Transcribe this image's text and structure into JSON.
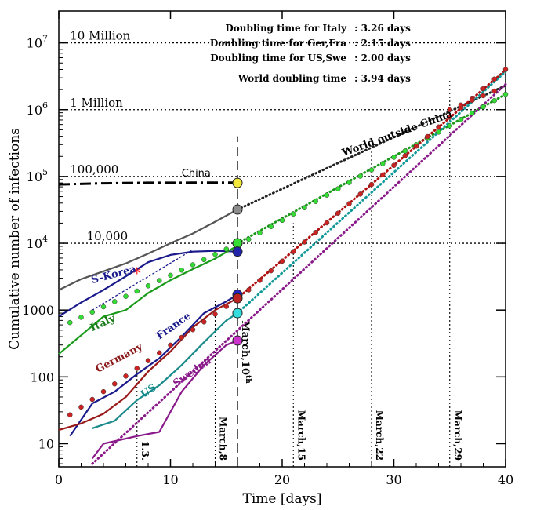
{
  "chart_data": {
    "type": "line",
    "yscale": "log",
    "xlabel": "Time [days]",
    "ylabel": "Cumulative number of infections",
    "xlim": [
      0,
      40
    ],
    "ylim": [
      4.5,
      30000000
    ],
    "xticks": [
      "0",
      "10",
      "20",
      "30",
      "40"
    ],
    "yticks": [
      {
        "value": 10,
        "label": "10"
      },
      {
        "value": 100,
        "label": "100"
      },
      {
        "value": 1000,
        "label": "1000"
      },
      {
        "value": 10000,
        "label": "10",
        "exp": "4"
      },
      {
        "value": 100000,
        "label": "10",
        "exp": "5"
      },
      {
        "value": 1000000,
        "label": "10",
        "exp": "6"
      },
      {
        "value": 10000000,
        "label": "10",
        "exp": "7"
      }
    ],
    "info_box": [
      {
        "name": "Doubling time for Italy",
        "value": ": 3.26 days"
      },
      {
        "name": "Doubling time for Ger,Fra",
        "value": ": 2.15 days"
      },
      {
        "name": "Doubling time for US,Swe",
        "value": ": 2.00 days"
      },
      {
        "name": "World doubling time",
        "value": ": 3.94 days"
      }
    ],
    "levels": [
      {
        "value": 10000000,
        "label": "10 Million"
      },
      {
        "value": 1000000,
        "label": "1 Million"
      },
      {
        "value": 100000,
        "label": "100,000"
      },
      {
        "value": 10000,
        "label": "10,000"
      }
    ],
    "vlines": [
      {
        "x": 7,
        "label": "1.3.",
        "ymax": 150
      },
      {
        "x": 14,
        "label": "March,8",
        "ymax": 1500
      },
      {
        "x": 21,
        "label": "March,15",
        "ymax": 20000
      },
      {
        "x": 28,
        "label": "March,22",
        "ymax": 250000
      },
      {
        "x": 35,
        "label": "March,29",
        "ymax": 3000000
      }
    ],
    "current_day": {
      "x": 16,
      "label": "March,10",
      "sup": "th"
    },
    "series": [
      {
        "name": "China",
        "color": "#000000",
        "style": "dashdot",
        "x": [
          0,
          4,
          8,
          12,
          16
        ],
        "y": [
          76000,
          79000,
          80500,
          80700,
          80900
        ]
      },
      {
        "name": "World outside China",
        "color": "#555555",
        "style": "solid",
        "x": [
          0,
          2,
          4,
          6,
          8,
          10,
          12,
          14,
          16
        ],
        "y": [
          2000,
          2900,
          3800,
          5000,
          7000,
          10000,
          14000,
          21000,
          32000
        ]
      },
      {
        "name": "S-Korea",
        "color": "#1a1a8c",
        "style": "solid",
        "x": [
          0,
          2,
          4,
          6,
          8,
          10,
          12,
          14,
          16
        ],
        "y": [
          800,
          1300,
          2000,
          3200,
          5200,
          6700,
          7500,
          7700,
          7500
        ]
      },
      {
        "name": "Italy",
        "color": "#1a9a1a",
        "style": "solid",
        "x": [
          0,
          2,
          4,
          6,
          8,
          10,
          12,
          14,
          16
        ],
        "y": [
          220,
          420,
          800,
          1000,
          1800,
          2800,
          4100,
          5900,
          9200
        ]
      },
      {
        "name": "France",
        "color": "#1a1a8c",
        "style": "solid",
        "x": [
          1,
          3,
          5,
          7,
          9,
          11,
          13,
          15,
          16
        ],
        "y": [
          13,
          40,
          60,
          110,
          190,
          400,
          900,
          1350,
          1700
        ]
      },
      {
        "name": "Germany",
        "color": "#9a1a1a",
        "style": "solid",
        "x": [
          0,
          2,
          4,
          6,
          8,
          10,
          12,
          14,
          16
        ],
        "y": [
          16,
          20,
          28,
          50,
          120,
          240,
          550,
          1000,
          1500
        ]
      },
      {
        "name": "US",
        "color": "#1a8a8a",
        "style": "solid",
        "x": [
          3,
          5,
          7,
          9,
          11,
          13,
          15,
          16
        ],
        "y": [
          17,
          22,
          45,
          75,
          150,
          330,
          700,
          900
        ]
      },
      {
        "name": "Sweden",
        "color": "#8a1a8a",
        "style": "solid",
        "x": [
          3,
          4,
          7,
          9,
          11,
          13,
          15,
          16
        ],
        "y": [
          6,
          10,
          13,
          15,
          60,
          150,
          300,
          350
        ]
      }
    ],
    "projections": [
      {
        "name": "World outside China (projection)",
        "color": "#222222",
        "x": [
          16,
          40
        ],
        "y": [
          32000,
          2300000
        ]
      },
      {
        "name": "Italy (projection)",
        "color": "#1a9a1a",
        "x": [
          16,
          40
        ],
        "y": [
          10000,
          1700000
        ]
      },
      {
        "name": "Germany/France (projection)",
        "color": "#b01010",
        "x": [
          16,
          40
        ],
        "y": [
          1500,
          3900000
        ]
      },
      {
        "name": "US (projection)",
        "color": "#119999",
        "x": [
          16,
          40
        ],
        "y": [
          900,
          3700000
        ]
      },
      {
        "name": "Sweden (projection)",
        "color": "#8a1a8a",
        "x": [
          3,
          40
        ],
        "y": [
          5,
          2400000
        ]
      },
      {
        "name": "S-Korea trend",
        "color": "#1a1a8c",
        "x": [
          3,
          12
        ],
        "y": [
          1000,
          8000
        ]
      }
    ],
    "markers": [
      {
        "name": "China",
        "x": 16,
        "y": 80000,
        "color": "#f2e83a"
      },
      {
        "name": "World outside China",
        "x": 16,
        "y": 32000,
        "color": "#8c8c8c"
      },
      {
        "name": "Italy",
        "x": 16,
        "y": 10000,
        "color": "#33dd33"
      },
      {
        "name": "S-Korea",
        "x": 16,
        "y": 7500,
        "color": "#2222aa"
      },
      {
        "name": "France",
        "x": 16,
        "y": 1700,
        "color": "#2222cc"
      },
      {
        "name": "Germany",
        "x": 16,
        "y": 1500,
        "color": "#bb2222"
      },
      {
        "name": "US",
        "x": 16,
        "y": 900,
        "color": "#33dddd"
      },
      {
        "name": "Sweden",
        "x": 16,
        "y": 350,
        "color": "#cc33cc"
      }
    ],
    "star": {
      "name": "S-Korea",
      "x": 7,
      "y": 3700,
      "color": "#ff2222"
    },
    "series_labels": [
      {
        "text": "China",
        "x": 11,
        "y": 100000
      },
      {
        "text": "World outside China",
        "x": 25.5,
        "y": 200000
      },
      {
        "text": "S-Korea",
        "x": 3,
        "y": 2500
      },
      {
        "text": "Italy",
        "x": 3,
        "y": 480
      },
      {
        "text": "France",
        "x": 9,
        "y": 360
      },
      {
        "text": "Germany",
        "x": 3.5,
        "y": 115
      },
      {
        "text": "US",
        "x": 7.6,
        "y": 48
      },
      {
        "text": "Sweden",
        "x": 10.5,
        "y": 70
      }
    ]
  }
}
